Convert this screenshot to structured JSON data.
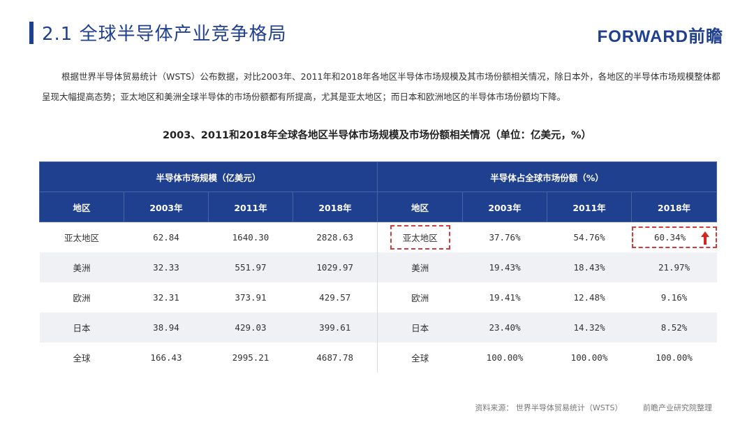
{
  "header": {
    "title": "2.1 全球半导体产业竞争格局",
    "logo": "FORWARD前瞻"
  },
  "intro": "根据世界半导体贸易统计（WSTS）公布数据，对比2003年、2011年和2018年各地区半导体市场规模及其市场份额相关情况，除日本外，各地区的半导体市场规模整体都呈现大幅提高态势；亚太地区和美洲全球半导体的市场份额都有所提高，尤其是亚太地区；而日本和欧洲地区的半导体市场份额均下降。",
  "table": {
    "caption": "2003、2011和2018年全球各地区半导体市场规模及市场份额相关情况（单位：亿美元，%）",
    "group_headers": [
      "半导体市场规模（亿美元）",
      "半导体占全球市场份额（%）"
    ],
    "columns": [
      "地区",
      "2003年",
      "2011年",
      "2018年",
      "地区",
      "2003年",
      "2011年",
      "2018年"
    ],
    "rows": [
      [
        "亚太地区",
        "62.84",
        "1640.30",
        "2828.63",
        "亚太地区",
        "37.76%",
        "54.76%",
        "60.34%"
      ],
      [
        "美洲",
        "32.33",
        "551.97",
        "1029.97",
        "美洲",
        "19.43%",
        "18.43%",
        "21.97%"
      ],
      [
        "欧洲",
        "32.31",
        "373.91",
        "429.57",
        "欧洲",
        "19.41%",
        "12.48%",
        "9.16%"
      ],
      [
        "日本",
        "38.94",
        "429.03",
        "399.61",
        "日本",
        "23.40%",
        "14.32%",
        "8.52%"
      ],
      [
        "全球",
        "166.43",
        "2995.21",
        "4687.78",
        "全球",
        "100.00%",
        "100.00%",
        "100.00%"
      ]
    ]
  },
  "source": {
    "label": "资料来源：  世界半导体贸易统计（WSTS）",
    "org": "前瞻产业研究院整理"
  },
  "colors": {
    "primary": "#1f3f8f",
    "highlight": "#d23b3b",
    "arrow": "#d6241f",
    "row_shade": "#f0f1f5"
  },
  "icons": [
    "up-arrow-icon"
  ]
}
